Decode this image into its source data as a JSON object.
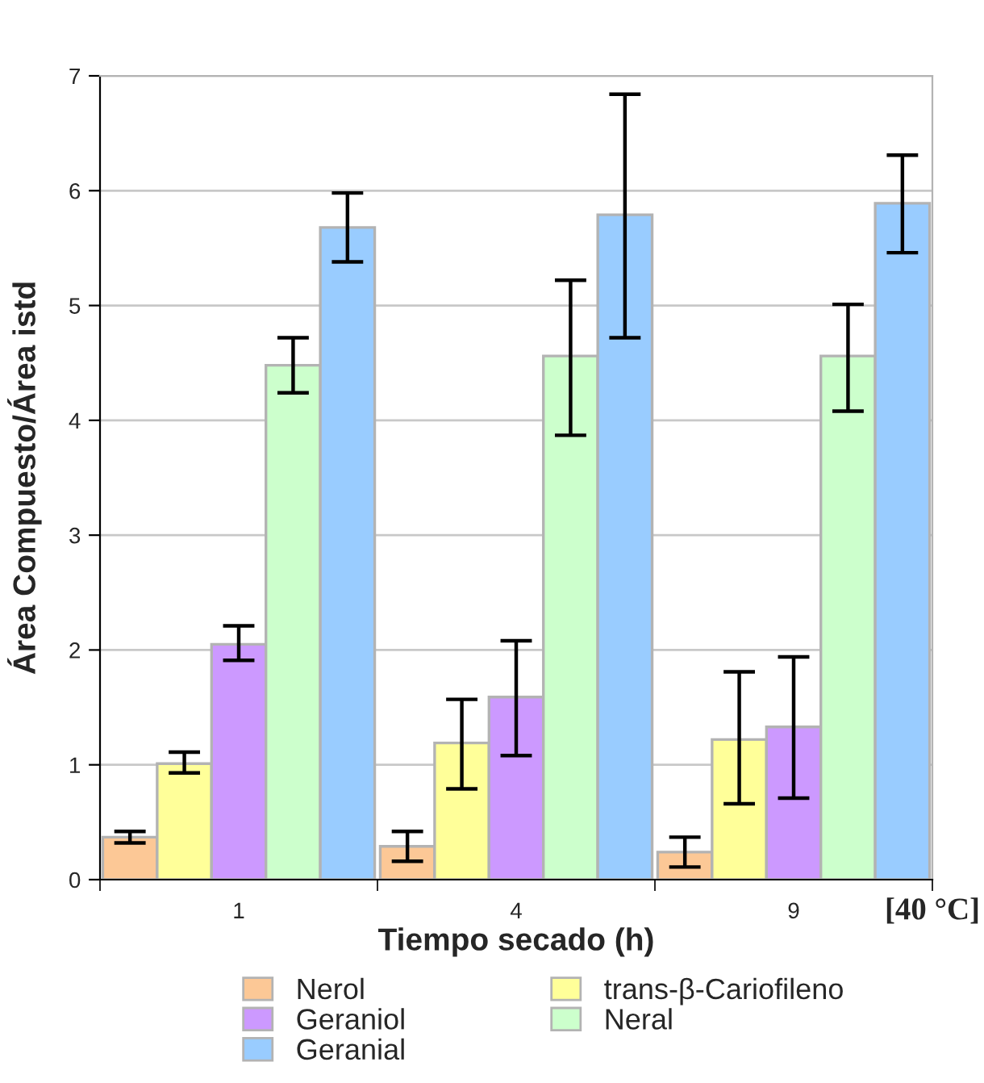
{
  "chart_data": {
    "type": "bar",
    "xlabel": "Tiempo secado (h)",
    "ylabel": "Área Compuesto/Área istd",
    "categories": [
      "1",
      "4",
      "9"
    ],
    "series": [
      {
        "name": "Nerol",
        "color": "#fcc896",
        "values": [
          0.37,
          0.29,
          0.24
        ],
        "errors": [
          [
            0.32,
            0.42
          ],
          [
            0.16,
            0.42
          ],
          [
            0.11,
            0.37
          ]
        ]
      },
      {
        "name": "trans-β-Cariofileno",
        "color": "#ffff99",
        "values": [
          1.01,
          1.19,
          1.22
        ],
        "errors": [
          [
            0.93,
            1.11
          ],
          [
            0.79,
            1.57
          ],
          [
            0.66,
            1.81
          ]
        ]
      },
      {
        "name": "Geraniol",
        "color": "#cc99ff",
        "values": [
          2.05,
          1.59,
          1.33
        ],
        "errors": [
          [
            1.91,
            2.21
          ],
          [
            1.08,
            2.08
          ],
          [
            0.71,
            1.94
          ]
        ]
      },
      {
        "name": "Neral",
        "color": "#ccffcc",
        "values": [
          4.48,
          4.56,
          4.56
        ],
        "errors": [
          [
            4.24,
            4.72
          ],
          [
            3.87,
            5.22
          ],
          [
            4.08,
            5.01
          ]
        ]
      },
      {
        "name": "Geranial",
        "color": "#99ccff",
        "values": [
          5.68,
          5.79,
          5.89
        ],
        "errors": [
          [
            5.38,
            5.98
          ],
          [
            4.72,
            6.84
          ],
          [
            5.46,
            6.31
          ]
        ]
      }
    ],
    "ylim": [
      0,
      7
    ],
    "yticks": [
      0,
      1,
      2,
      3,
      4,
      5,
      6,
      7
    ],
    "grid": "y",
    "legend": "bottom",
    "annotations": [
      "[40 °C]"
    ]
  }
}
